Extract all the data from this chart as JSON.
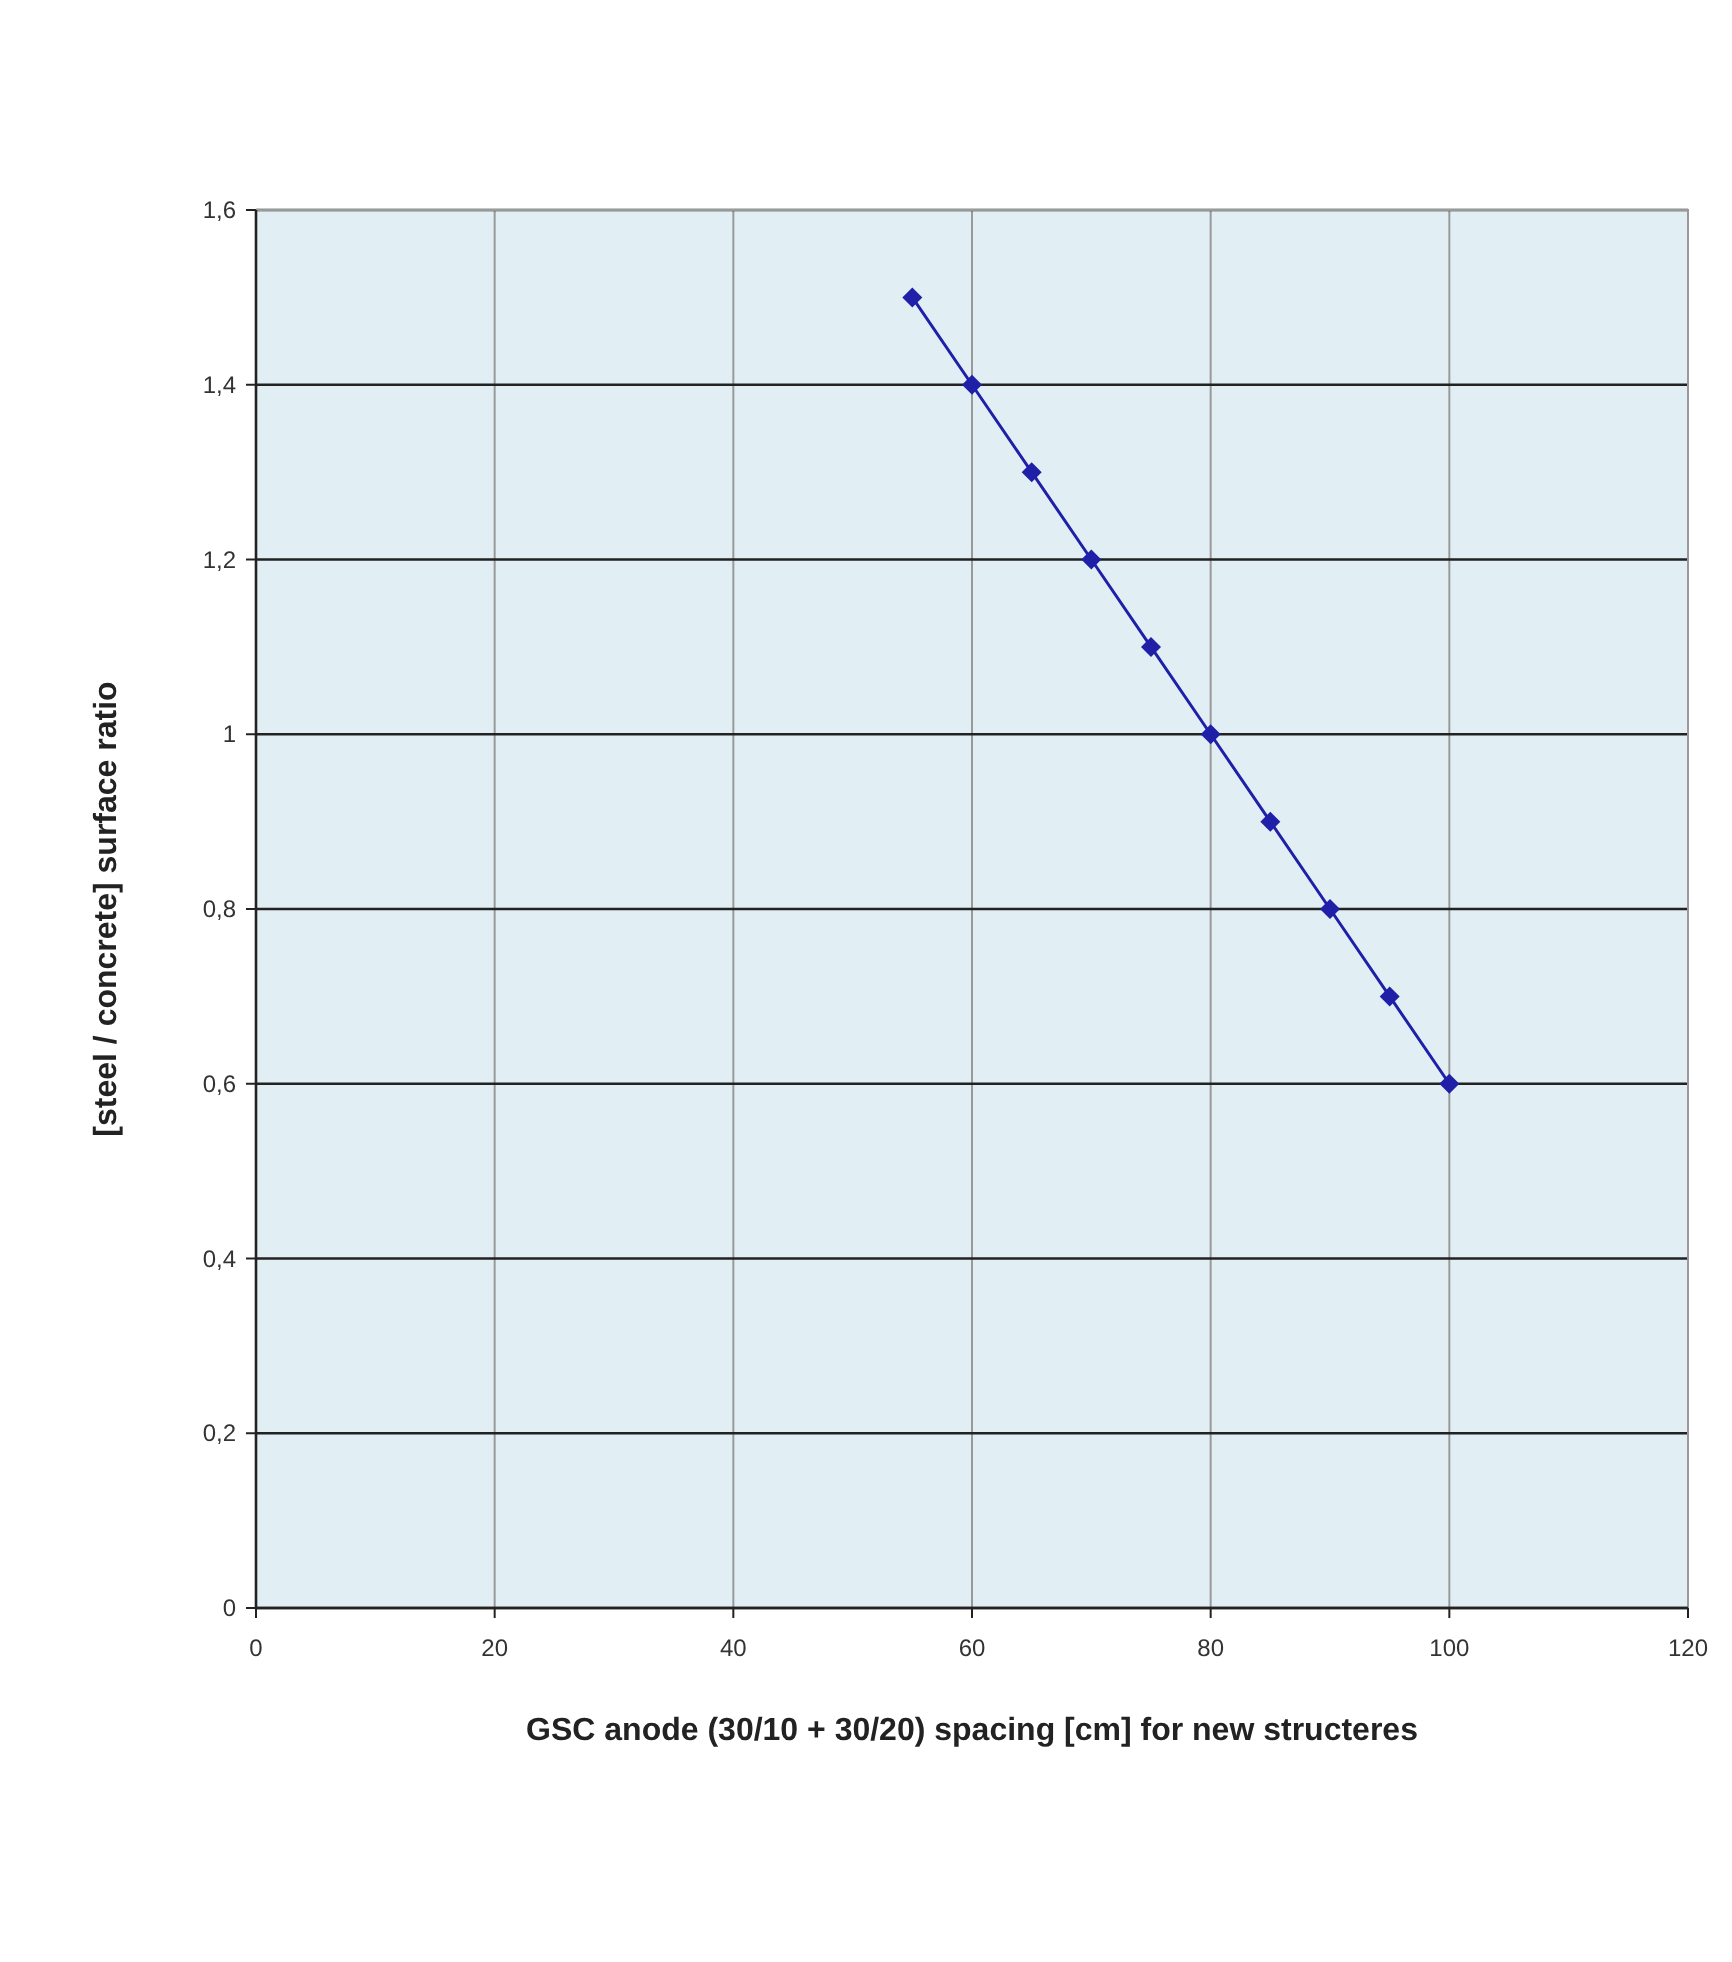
{
  "chart_data": {
    "type": "line",
    "xlabel": "GSC anode  (30/10 + 30/20)  spacing [cm]  for new structeres",
    "ylabel": "[steel  /  concrete]  surface ratio",
    "x": [
      55,
      60,
      65,
      70,
      75,
      80,
      85,
      90,
      95,
      100
    ],
    "series": [
      {
        "color": "#1f1fa8",
        "values": [
          1.5,
          1.4,
          1.3,
          1.2,
          1.1,
          1.0,
          0.9,
          0.8,
          0.7,
          0.6
        ]
      }
    ],
    "xlim": [
      0,
      120
    ],
    "xticks": [
      0,
      20,
      40,
      60,
      80,
      100,
      120
    ],
    "ylim": [
      0,
      1.6
    ],
    "yticks": [
      0,
      {
        "value": 0.2,
        "label": "0,2"
      },
      {
        "value": 0.4,
        "label": "0,4"
      },
      {
        "value": 0.6,
        "label": "0,6"
      },
      {
        "value": 0.8,
        "label": "0,8"
      },
      1,
      {
        "value": 1.2,
        "label": "1,2"
      },
      {
        "value": 1.4,
        "label": "1,4"
      },
      {
        "value": 1.6,
        "label": "1,6"
      }
    ],
    "grid": true,
    "marker": "diamond",
    "line_style": "solid"
  }
}
